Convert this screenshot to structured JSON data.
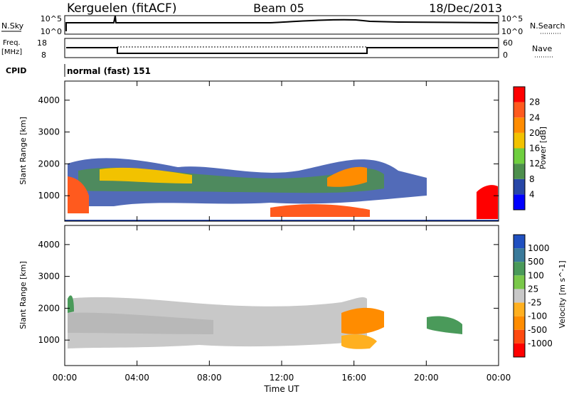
{
  "header": {
    "station": "Kerguelen (fitACF)",
    "beam": "Beam 05",
    "date": "18/Dec/2013"
  },
  "nsky_panel": {
    "left_label": "N.Sky",
    "right_label": "N.Search",
    "ticks": [
      "10^5",
      "10^0"
    ]
  },
  "freq_panel": {
    "left_label_1": "Freq.",
    "left_label_2": "[MHz]",
    "left_ticks": [
      "18",
      "8"
    ],
    "right_label": "Nave",
    "right_ticks": [
      "60",
      "0"
    ]
  },
  "cpid": {
    "label": "CPID",
    "value": "normal (fast) 151"
  },
  "colors": {
    "power_scale": [
      "#0000ff",
      "#2746a6",
      "#4d8f4d",
      "#6fcf3f",
      "#f2c200",
      "#ff8c00",
      "#ff5a1e",
      "#ff0000"
    ],
    "velocity_scale": [
      "#2050c0",
      "#3a7a9a",
      "#4a9a5a",
      "#7ac84a",
      "#c8c8c8",
      "#ffb020",
      "#ff8c00",
      "#ff4a10",
      "#ff0000"
    ]
  },
  "chart_data": [
    {
      "type": "heatmap",
      "title": "",
      "xlabel": "Time UT",
      "ylabel": "Slant Range [km]",
      "x_ticks": [
        "00:00",
        "04:00",
        "08:00",
        "12:00",
        "16:00",
        "20:00",
        "00:00"
      ],
      "y_ticks": [
        "1000",
        "2000",
        "3000",
        "4000"
      ],
      "ylim": [
        200,
        4600
      ],
      "colorbar": {
        "label": "Power [dB]",
        "ticks": [
          "4",
          "8",
          "12",
          "16",
          "20",
          "24",
          "28"
        ],
        "range": [
          0,
          32
        ]
      }
    },
    {
      "type": "heatmap",
      "title": "",
      "xlabel": "Time UT",
      "ylabel": "Slant Range [km]",
      "x_ticks": [
        "00:00",
        "04:00",
        "08:00",
        "12:00",
        "16:00",
        "20:00",
        "00:00"
      ],
      "y_ticks": [
        "1000",
        "2000",
        "3000",
        "4000"
      ],
      "ylim": [
        200,
        4600
      ],
      "colorbar": {
        "label": "Velocity [m s^-1]",
        "ticks": [
          "1000",
          "500",
          "100",
          "25",
          "-25",
          "-100",
          "-500",
          "-1000"
        ],
        "range": [
          -1000,
          1000
        ]
      }
    }
  ]
}
